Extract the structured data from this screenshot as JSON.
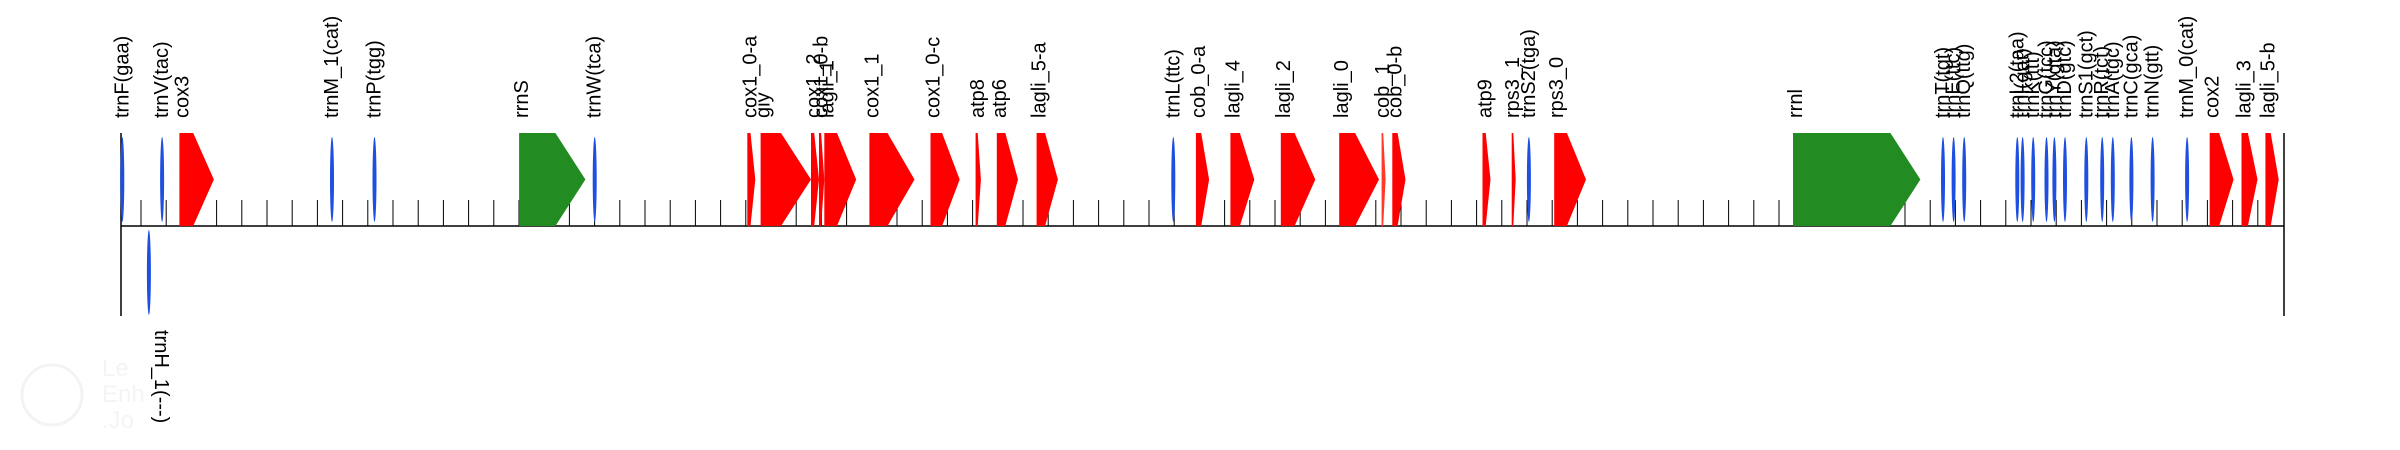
{
  "colors": {
    "protein": "#ff0000",
    "trna": "#1f4fe0",
    "rrna": "#228b22",
    "orf": "#ff3a2a",
    "axis": "#000000",
    "watermark": "#e6e6e6"
  },
  "watermark": {
    "line1": "Le",
    "line2": "Enh",
    "line3": ".Jo"
  },
  "features": [
    {
      "name": "trnF(gaa)",
      "type": "trna",
      "strand": "+",
      "start": 0,
      "end": 1
    },
    {
      "name": "trnV(tac)",
      "type": "trna",
      "strand": "+",
      "start": 15,
      "end": 16
    },
    {
      "name": "cox3",
      "type": "protein",
      "strand": "+",
      "start": 22,
      "end": 35
    },
    {
      "name": "trnH_1(---)",
      "type": "trna",
      "strand": "-",
      "start": 10,
      "end": 11
    },
    {
      "name": "trnM_1(cat)",
      "type": "trna",
      "strand": "+",
      "start": 79,
      "end": 80
    },
    {
      "name": "trnP(tgg)",
      "type": "trna",
      "strand": "+",
      "start": 95,
      "end": 96
    },
    {
      "name": "rrnS",
      "type": "rrna",
      "strand": "+",
      "start": 150,
      "end": 175
    },
    {
      "name": "trnW(tca)",
      "type": "trna",
      "strand": "+",
      "start": 178,
      "end": 179
    },
    {
      "name": "cox1_0-a",
      "type": "protein",
      "strand": "+",
      "start": 236,
      "end": 239
    },
    {
      "name": "giy",
      "type": "protein",
      "strand": "+",
      "start": 241,
      "end": 260
    },
    {
      "name": "cox1_2",
      "type": "protein",
      "strand": "+",
      "start": 260,
      "end": 263
    },
    {
      "name": "lagli_1",
      "type": "protein",
      "strand": "+",
      "start": 265,
      "end": 277
    },
    {
      "name": "cox1_0-b",
      "type": "protein",
      "strand": "+",
      "start": 263,
      "end": 265
    },
    {
      "name": "cox1_1",
      "type": "protein",
      "strand": "+",
      "start": 282,
      "end": 299
    },
    {
      "name": "cox1_0-c",
      "type": "protein",
      "strand": "+",
      "start": 305,
      "end": 316
    },
    {
      "name": "atp8",
      "type": "protein",
      "strand": "+",
      "start": 322,
      "end": 324
    },
    {
      "name": "atp6",
      "type": "protein",
      "strand": "+",
      "start": 330,
      "end": 338
    },
    {
      "name": "lagli_5-a",
      "type": "protein",
      "strand": "+",
      "start": 345,
      "end": 353
    },
    {
      "name": "trnL(ttc)",
      "type": "trna",
      "strand": "+",
      "start": 396,
      "end": 397
    },
    {
      "name": "cob_0-a",
      "type": "protein",
      "strand": "+",
      "start": 405,
      "end": 410
    },
    {
      "name": "lagli_4",
      "type": "protein",
      "strand": "+",
      "start": 418,
      "end": 427
    },
    {
      "name": "lagli_2",
      "type": "protein",
      "strand": "+",
      "start": 437,
      "end": 450
    },
    {
      "name": "lagli_0",
      "type": "protein",
      "strand": "+",
      "start": 459,
      "end": 474
    },
    {
      "name": "cob_1",
      "type": "orf",
      "strand": "+",
      "start": 475,
      "end": 476
    },
    {
      "name": "cob_0-b",
      "type": "protein",
      "strand": "+",
      "start": 479,
      "end": 484
    },
    {
      "name": "atp9",
      "type": "protein",
      "strand": "+",
      "start": 513,
      "end": 516
    },
    {
      "name": "rps3_1",
      "type": "protein",
      "strand": "+",
      "start": 524,
      "end": 525
    },
    {
      "name": "trnS2(tga)",
      "type": "trna",
      "strand": "+",
      "start": 530,
      "end": 531
    },
    {
      "name": "rps3_0",
      "type": "protein",
      "strand": "+",
      "start": 540,
      "end": 552
    },
    {
      "name": "rrnl",
      "type": "rrna",
      "strand": "+",
      "start": 630,
      "end": 678
    },
    {
      "name": "trnT(tgt)",
      "type": "trna",
      "strand": "+",
      "start": 686,
      "end": 687
    },
    {
      "name": "trnE(ttc)",
      "type": "trna",
      "strand": "+",
      "start": 690,
      "end": 691
    },
    {
      "name": "trnQ(ttg)",
      "type": "trna",
      "strand": "+",
      "start": 694,
      "end": 695
    },
    {
      "name": "trnL2(taa)",
      "type": "trna",
      "strand": "+",
      "start": 714,
      "end": 715
    },
    {
      "name": "trnI(gat)",
      "type": "trna",
      "strand": "+",
      "start": 716,
      "end": 717
    },
    {
      "name": "trnK(ttt)",
      "type": "trna",
      "strand": "+",
      "start": 720,
      "end": 721
    },
    {
      "name": "trnG(tcc)",
      "type": "trna",
      "strand": "+",
      "start": 725,
      "end": 726
    },
    {
      "name": "trnY(gta)",
      "type": "trna",
      "strand": "+",
      "start": 728,
      "end": 729
    },
    {
      "name": "trnD(gtc)",
      "type": "trna",
      "strand": "+",
      "start": 732,
      "end": 733
    },
    {
      "name": "trnS1(gct)",
      "type": "trna",
      "strand": "+",
      "start": 740,
      "end": 741
    },
    {
      "name": "trnR(tct)",
      "type": "trna",
      "strand": "+",
      "start": 746,
      "end": 747
    },
    {
      "name": "trnA(tgc)",
      "type": "trna",
      "strand": "+",
      "start": 750,
      "end": 751
    },
    {
      "name": "trnC(gca)",
      "type": "trna",
      "strand": "+",
      "start": 757,
      "end": 758
    },
    {
      "name": "trnN(gtt)",
      "type": "trna",
      "strand": "+",
      "start": 765,
      "end": 766
    },
    {
      "name": "trnM_0(cat)",
      "type": "trna",
      "strand": "+",
      "start": 778,
      "end": 779
    },
    {
      "name": "cox2",
      "type": "protein",
      "strand": "+",
      "start": 787,
      "end": 796
    },
    {
      "name": "lagli_3",
      "type": "protein",
      "strand": "+",
      "start": 799,
      "end": 805
    },
    {
      "name": "lagli_5-b",
      "type": "protein",
      "strand": "+",
      "start": 808,
      "end": 813
    }
  ]
}
